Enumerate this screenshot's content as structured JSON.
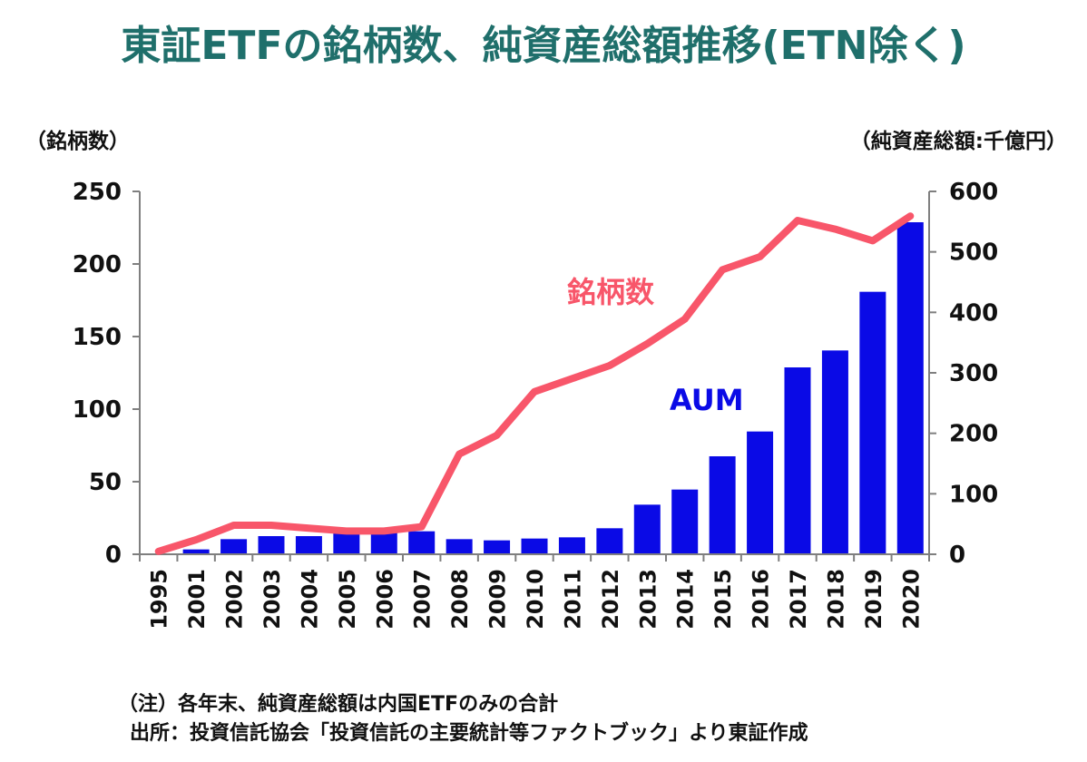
{
  "title": "東証ETFの銘柄数、純資産総額推移(ETN除く)",
  "left_axis_caption": "（銘柄数）",
  "right_axis_caption": "（純資産総額:千億円）",
  "note": "（注）各年末、純資産総額は内国ETFのみの合計",
  "source": "出所：投資信託協会「投資信託の主要統計等ファクトブック」より東証作成",
  "colors": {
    "bars": "#0a0ae6",
    "line": "#f8566a",
    "title": "#1f6f6b"
  },
  "chart_data": {
    "type": "bar+line",
    "categories": [
      "1995",
      "2001",
      "2002",
      "2003",
      "2004",
      "2005",
      "2006",
      "2007",
      "2008",
      "2009",
      "2010",
      "2011",
      "2012",
      "2013",
      "2014",
      "2015",
      "2016",
      "2017",
      "2018",
      "2019",
      "2020"
    ],
    "left_axis": {
      "label": "（銘柄数）",
      "ylim": [
        0,
        250
      ],
      "ticks": [
        0,
        50,
        100,
        150,
        200,
        250
      ]
    },
    "right_axis": {
      "label": "（純資産総額:千億円）",
      "ylim": [
        0,
        600
      ],
      "ticks": [
        0,
        100,
        200,
        300,
        400,
        500,
        600
      ]
    },
    "series": [
      {
        "name": "AUM",
        "type": "bar",
        "axis": "right",
        "values": [
          0,
          8,
          25,
          30,
          30,
          40,
          40,
          38,
          25,
          23,
          26,
          28,
          43,
          82,
          107,
          162,
          203,
          309,
          337,
          434,
          549
        ]
      },
      {
        "name": "銘柄数",
        "type": "line",
        "axis": "left",
        "values": [
          2,
          10,
          20,
          20,
          18,
          16,
          16,
          19,
          69,
          82,
          112,
          121,
          130,
          145,
          162,
          196,
          205,
          230,
          224,
          216,
          233
        ]
      }
    ],
    "grid": false,
    "legend": "inline labels"
  }
}
